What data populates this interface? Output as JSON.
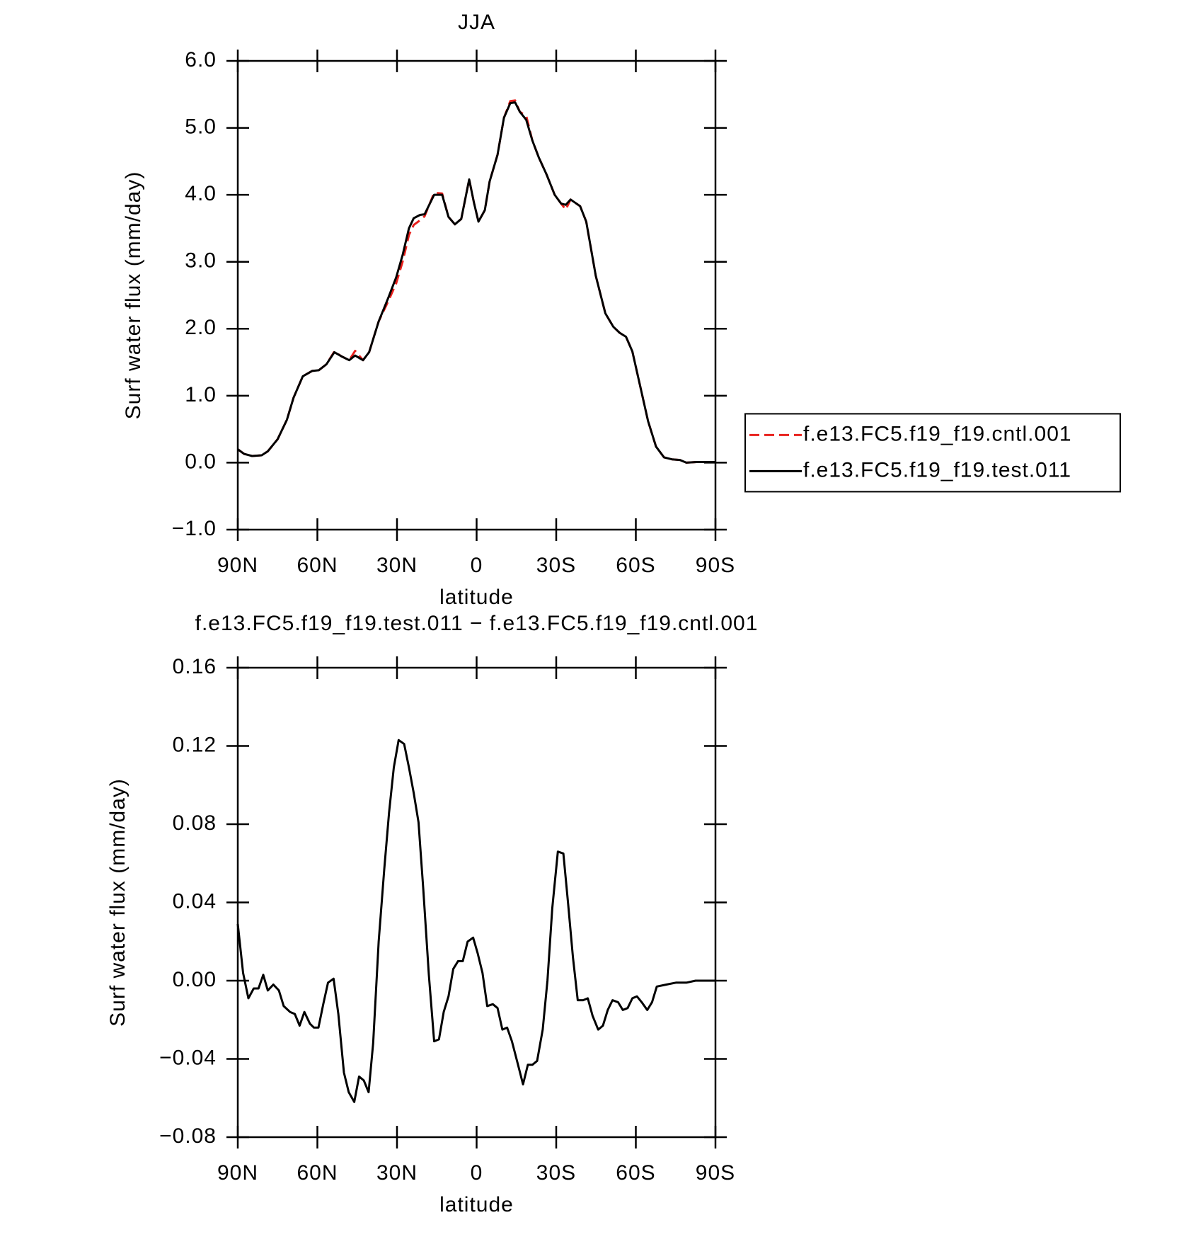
{
  "chart_data": [
    {
      "type": "line",
      "title": "JJA",
      "xlabel": "latitude",
      "ylabel": "Surf water flux (mm/day)",
      "x": [
        90,
        87.6,
        84.6,
        81,
        78.7,
        75,
        71.5,
        69,
        65.5,
        62,
        59.5,
        56.6,
        53.6,
        51,
        48,
        45.8,
        42.8,
        40.5,
        36.9,
        33.3,
        30.3,
        27.9,
        25.5,
        23.7,
        21.3,
        19.6,
        16,
        13,
        10.6,
        8.2,
        5.8,
        2.8,
        1,
        -0.7,
        -3.1,
        -4.9,
        -7.9,
        -10.3,
        -12.7,
        -14.5,
        -16.3,
        -18.7,
        -21,
        -23.4,
        -26.4,
        -29.4,
        -31.8,
        -33.6,
        -35.4,
        -39,
        -41.3,
        -44.9,
        -48.5,
        -51.5,
        -53.9,
        -56.3,
        -58.7,
        -61.6,
        -64.6,
        -67.6,
        -70.6,
        -73.6,
        -76.6,
        -79,
        -83,
        -90
      ],
      "series": [
        {
          "name": "f.e13.FC5.f19_f19.cntl.001",
          "color": "#e8201c",
          "dash": true,
          "values": [
            0.2,
            0.13,
            0.1,
            0.11,
            0.17,
            0.35,
            0.64,
            0.97,
            1.29,
            1.37,
            1.38,
            1.47,
            1.66,
            1.59,
            1.53,
            1.67,
            1.53,
            1.65,
            2.11,
            2.41,
            2.68,
            3.0,
            3.4,
            3.55,
            3.62,
            3.68,
            4.03,
            4.02,
            3.67,
            3.56,
            3.64,
            4.23,
            3.88,
            3.6,
            3.77,
            4.2,
            4.6,
            5.15,
            5.4,
            5.41,
            5.24,
            5.18,
            4.81,
            4.56,
            4.3,
            4.0,
            3.87,
            3.78,
            3.93,
            3.83,
            3.6,
            2.79,
            2.23,
            2.03,
            1.94,
            1.88,
            1.66,
            1.15,
            0.62,
            0.24,
            0.08,
            0.05,
            0.04,
            0,
            0.01,
            0.01
          ]
        },
        {
          "name": "f.e13.FC5.f19_f19.test.011",
          "color": "#000000",
          "dash": false,
          "values": [
            0.2,
            0.13,
            0.1,
            0.11,
            0.17,
            0.35,
            0.64,
            0.97,
            1.29,
            1.37,
            1.38,
            1.47,
            1.65,
            1.59,
            1.53,
            1.6,
            1.53,
            1.65,
            2.11,
            2.46,
            2.77,
            3.1,
            3.5,
            3.65,
            3.7,
            3.71,
            4.0,
            4.0,
            3.67,
            3.56,
            3.64,
            4.23,
            3.88,
            3.6,
            3.77,
            4.2,
            4.6,
            5.15,
            5.37,
            5.38,
            5.24,
            5.12,
            4.81,
            4.56,
            4.3,
            4.0,
            3.87,
            3.85,
            3.93,
            3.83,
            3.6,
            2.79,
            2.23,
            2.03,
            1.94,
            1.88,
            1.66,
            1.15,
            0.62,
            0.24,
            0.08,
            0.05,
            0.04,
            0,
            0.01,
            0.01
          ]
        }
      ],
      "xlim": [
        90,
        -90
      ],
      "xticks": [
        {
          "value": 90,
          "label": "90N"
        },
        {
          "value": 60,
          "label": "60N"
        },
        {
          "value": 30,
          "label": "30N"
        },
        0,
        {
          "value": -30,
          "label": "30S"
        },
        {
          "value": -60,
          "label": "60S"
        },
        {
          "value": -90,
          "label": "90S"
        }
      ],
      "ylim": [
        -1,
        6
      ],
      "yticks": [
        {
          "value": -1,
          "label": "−1.0"
        },
        {
          "value": 0,
          "label": "0.0"
        },
        {
          "value": 1,
          "label": "1.0"
        },
        {
          "value": 2,
          "label": "2.0"
        },
        {
          "value": 3,
          "label": "3.0"
        },
        {
          "value": 4,
          "label": "4.0"
        },
        {
          "value": 5,
          "label": "5.0"
        },
        {
          "value": 6,
          "label": "6.0"
        }
      ],
      "legend": "right"
    },
    {
      "type": "line",
      "title": "f.e13.FC5.f19_f19.test.011 − f.e13.FC5.f19_f19.cntl.001",
      "xlabel": "latitude",
      "ylabel": "Surf water flux (mm/day)",
      "x": [
        90,
        88,
        86,
        84,
        82.2,
        80.4,
        78.7,
        76.6,
        74.5,
        72.7,
        70.3,
        68.5,
        66.7,
        64.9,
        62.8,
        61.3,
        59.6,
        57.8,
        56,
        53.9,
        52.1,
        50,
        48.2,
        46.1,
        44.3,
        42.5,
        40.7,
        39,
        36.9,
        34.8,
        33,
        31.2,
        29.4,
        27.3,
        25.5,
        23.7,
        21.9,
        20.1,
        18,
        16,
        14.2,
        12.4,
        10.6,
        8.8,
        7,
        5.2,
        3.4,
        1.3,
        -0.4,
        -2.2,
        -4,
        -6.1,
        -7.9,
        -9.7,
        -11.5,
        -13.3,
        -15.4,
        -17.5,
        -19.3,
        -21,
        -22.8,
        -24.9,
        -26.7,
        -28.5,
        -30.6,
        -32.7,
        -34.5,
        -36.3,
        -38.1,
        -40.1,
        -41.9,
        -43.7,
        -45.8,
        -47.6,
        -49.4,
        -51.2,
        -53.3,
        -55.1,
        -56.9,
        -58.7,
        -60.4,
        -62.2,
        -64.3,
        -66.1,
        -67.9,
        -71.5,
        -75.1,
        -79,
        -82.5,
        -86.1,
        -90
      ],
      "series": [
        {
          "color": "#000000",
          "dash": false,
          "values": [
            0.029,
            0.004,
            -0.009,
            -0.004,
            -0.004,
            0.003,
            -0.005,
            -0.002,
            -0.005,
            -0.013,
            -0.016,
            -0.017,
            -0.023,
            -0.016,
            -0.022,
            -0.024,
            -0.024,
            -0.012,
            -0.001,
            0.001,
            -0.017,
            -0.047,
            -0.057,
            -0.062,
            -0.049,
            -0.051,
            -0.057,
            -0.032,
            0.02,
            0.057,
            0.086,
            0.109,
            0.123,
            0.121,
            0.109,
            0.096,
            0.081,
            0.047,
            0.003,
            -0.031,
            -0.03,
            -0.016,
            -0.008,
            0.006,
            0.01,
            0.01,
            0.02,
            0.022,
            0.014,
            0.004,
            -0.013,
            -0.012,
            -0.014,
            -0.025,
            -0.024,
            -0.031,
            -0.042,
            -0.053,
            -0.043,
            -0.043,
            -0.041,
            -0.025,
            0,
            0.037,
            0.066,
            0.065,
            0.039,
            0.012,
            -0.01,
            -0.01,
            -0.009,
            -0.018,
            -0.025,
            -0.023,
            -0.015,
            -0.01,
            -0.011,
            -0.015,
            -0.014,
            -0.009,
            -0.008,
            -0.011,
            -0.015,
            -0.011,
            -0.003,
            -0.002,
            -0.001,
            -0.001,
            0,
            0,
            0
          ]
        }
      ],
      "xlim": [
        90,
        -90
      ],
      "xticks": [
        {
          "value": 90,
          "label": "90N"
        },
        {
          "value": 60,
          "label": "60N"
        },
        {
          "value": 30,
          "label": "30N"
        },
        0,
        {
          "value": -30,
          "label": "30S"
        },
        {
          "value": -60,
          "label": "60S"
        },
        {
          "value": -90,
          "label": "90S"
        }
      ],
      "ylim": [
        -0.08,
        0.16
      ],
      "yticks": [
        {
          "value": -0.08,
          "label": "−0.08"
        },
        {
          "value": -0.04,
          "label": "−0.04"
        },
        {
          "value": 0,
          "label": "0.00"
        },
        0.04,
        0.08,
        0.12,
        0.16
      ]
    }
  ]
}
